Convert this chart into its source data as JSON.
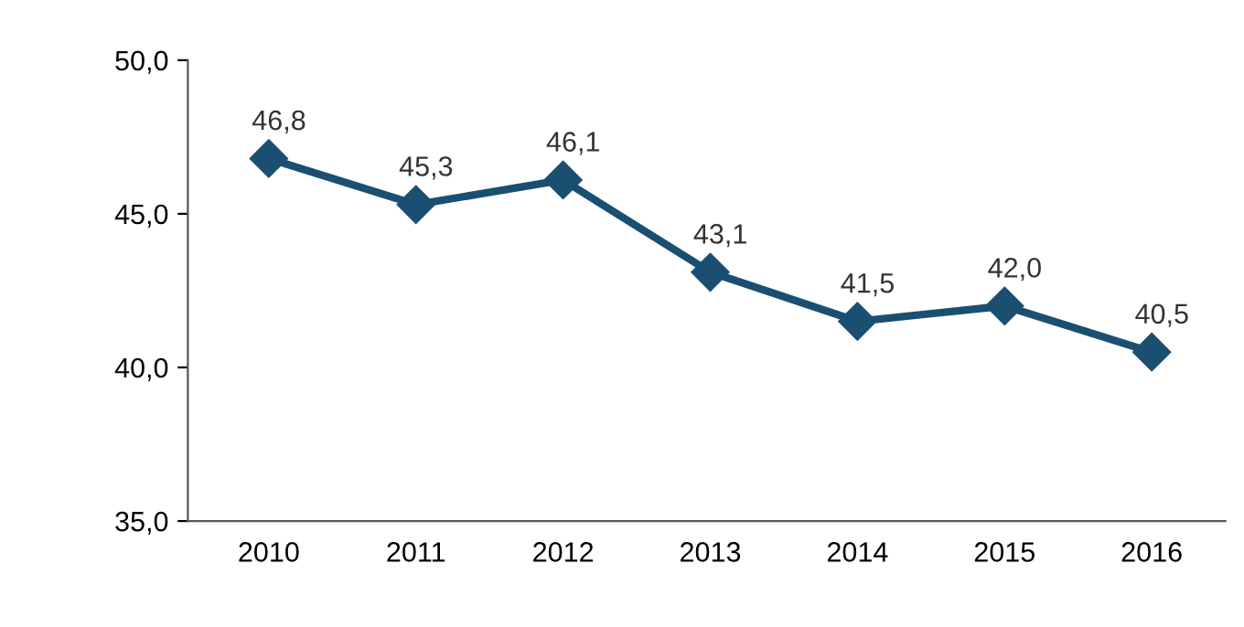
{
  "chart_data": {
    "type": "line",
    "categories": [
      "2010",
      "2011",
      "2012",
      "2013",
      "2014",
      "2015",
      "2016"
    ],
    "series": [
      {
        "color": "#1b4f72",
        "values": [
          46.8,
          45.3,
          46.1,
          43.1,
          41.5,
          42.0,
          40.5
        ],
        "value_labels": [
          "46,8",
          "45,3",
          "46,1",
          "43,1",
          "41,5",
          "42,0",
          "40,5"
        ]
      }
    ],
    "ylim": [
      35,
      50
    ],
    "yticks": [
      {
        "value": 35,
        "label": "35,0"
      },
      {
        "value": 40,
        "label": "40,0"
      },
      {
        "value": 45,
        "label": "45,0"
      },
      {
        "value": 50,
        "label": "50,0"
      }
    ],
    "grid": false,
    "legend": false,
    "marker": "diamond",
    "line_style": "solid"
  }
}
